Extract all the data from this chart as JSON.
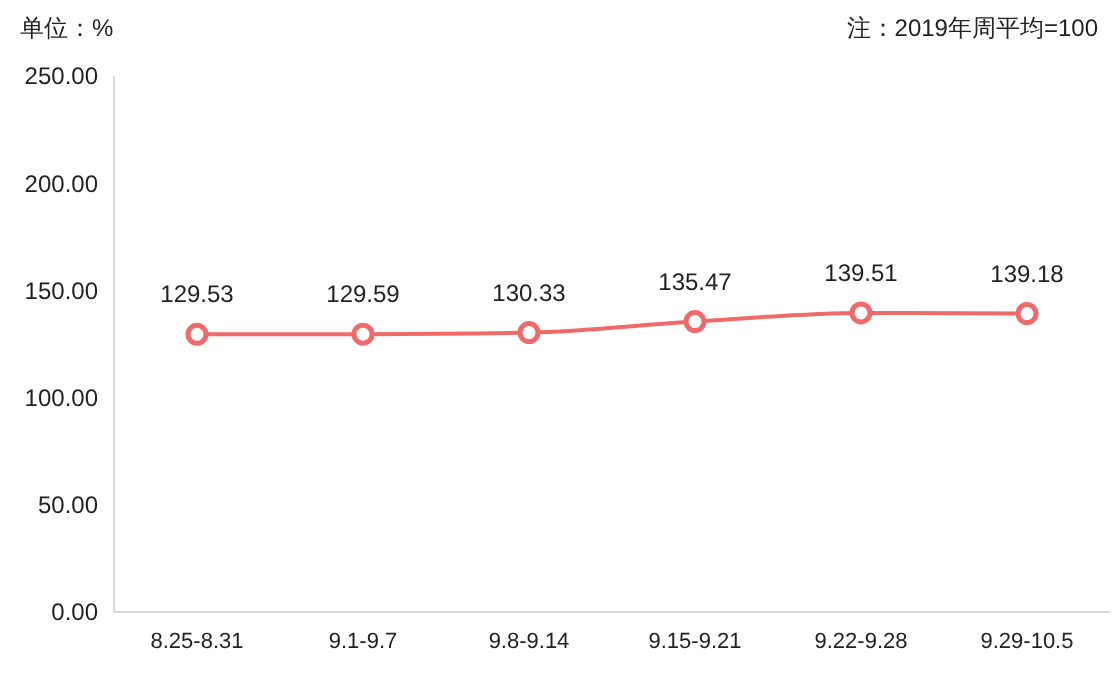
{
  "chart_data": {
    "type": "line",
    "ylabel": "单位：%",
    "annotations": [
      "注：2019年周平均=100"
    ],
    "categories": [
      "8.25-8.31",
      "9.1-9.7",
      "9.8-9.14",
      "9.15-9.21",
      "9.22-9.28",
      "9.29-10.5"
    ],
    "series": [
      {
        "color": "#f06a6a",
        "values": [
          129.53,
          129.59,
          130.33,
          135.47,
          139.51,
          139.18
        ]
      }
    ],
    "ylim": [
      0,
      250
    ],
    "yticks": [
      {
        "value": 0,
        "label": "0.00"
      },
      {
        "value": 50,
        "label": "50.00"
      },
      {
        "value": 100,
        "label": "100.00"
      },
      {
        "value": 150,
        "label": "150.00"
      },
      {
        "value": 200,
        "label": "200.00"
      },
      {
        "value": 250,
        "label": "250.00"
      }
    ],
    "data_labels": true,
    "marker": "circle"
  }
}
